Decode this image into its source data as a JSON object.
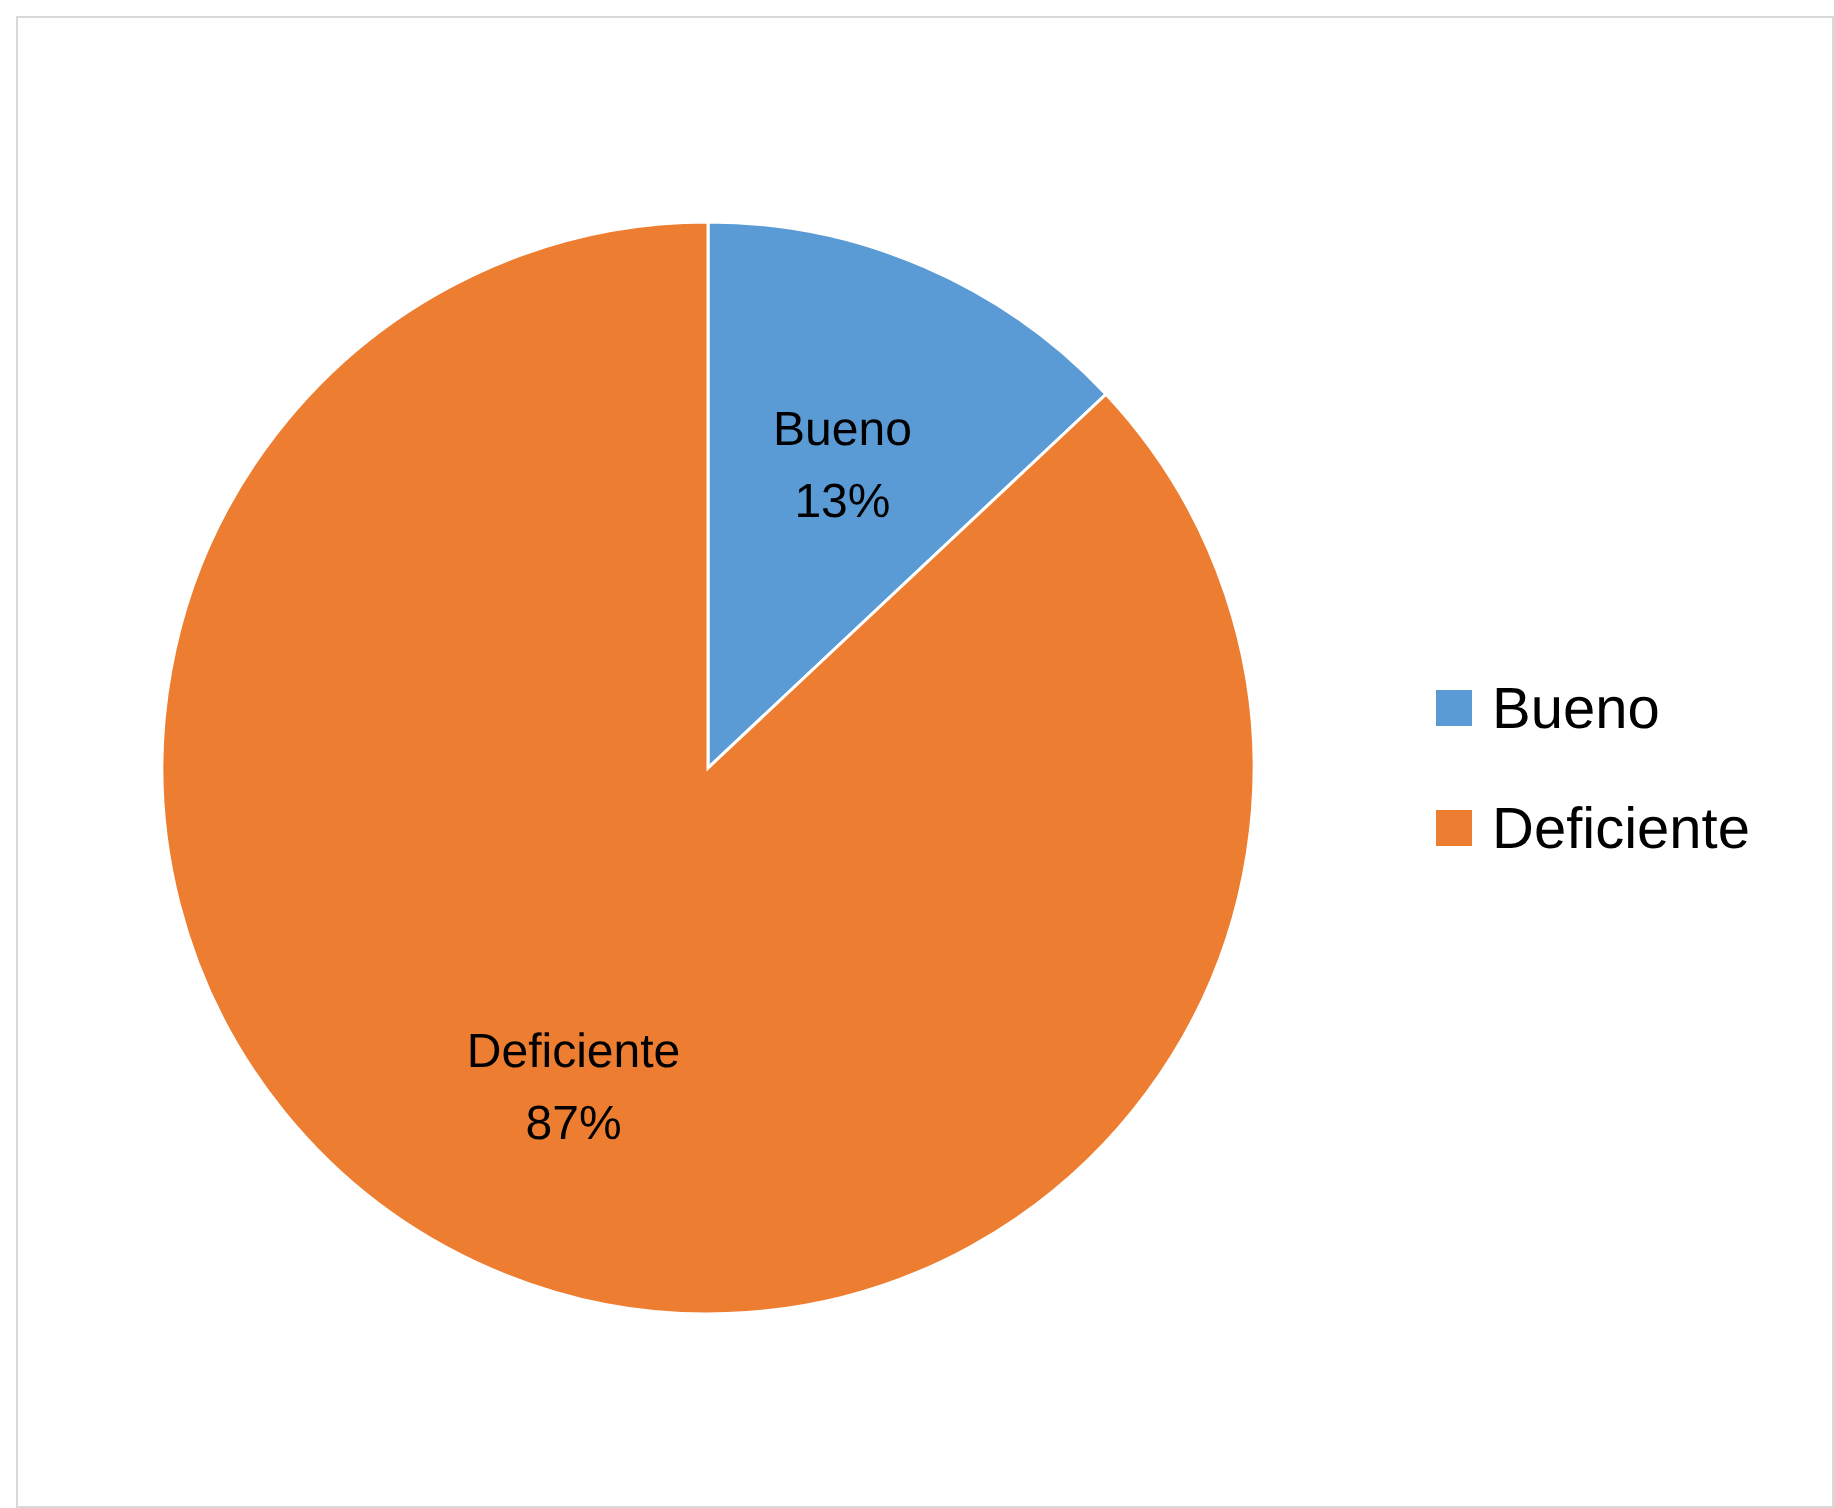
{
  "chart_data": {
    "type": "pie",
    "categories": [
      "Bueno",
      "Deficiente"
    ],
    "values": [
      13,
      87
    ],
    "value_labels": [
      "13%",
      "87%"
    ],
    "colors": [
      "#5b9bd5",
      "#ed7d31"
    ],
    "legend": "right"
  }
}
